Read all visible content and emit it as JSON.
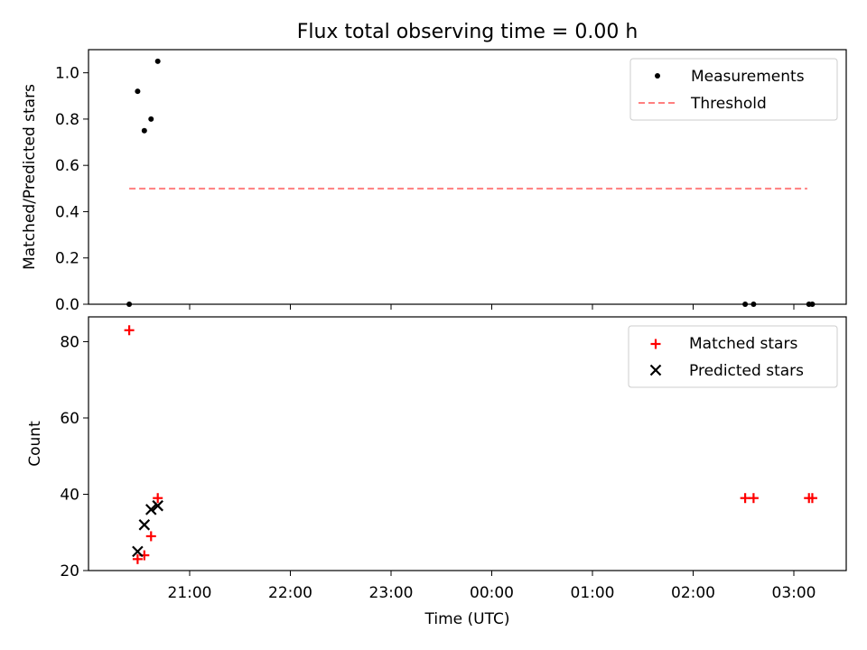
{
  "chart_data": [
    {
      "type": "scatter",
      "title": "Flux total observing time = 0.00 h",
      "ylabel": "Matched/Predicted stars",
      "xlabel": "",
      "ylim": [
        0,
        1.1
      ],
      "yticks": [
        "0.0",
        "0.2",
        "0.4",
        "0.6",
        "0.8",
        "1.0"
      ],
      "ytick_values": [
        0,
        0.2,
        0.4,
        0.6,
        0.8,
        1.0
      ],
      "series": [
        {
          "name": "Measurements",
          "kind": "scatter",
          "color": "#000000",
          "marker": "dot",
          "x": [
            "20:24",
            "20:29",
            "20:33",
            "20:37",
            "20:41",
            "02:31",
            "02:36",
            "03:09",
            "03:11"
          ],
          "y": [
            0.0,
            0.92,
            0.75,
            0.8,
            1.05,
            0.0,
            0.0,
            0.0,
            0.0
          ]
        },
        {
          "name": "Threshold",
          "kind": "line",
          "color": "#ff7f7f",
          "dash": "dashed",
          "x": [
            "20:24",
            "03:08"
          ],
          "y": [
            0.5,
            0.5
          ]
        }
      ],
      "legend": "top-right"
    },
    {
      "type": "scatter",
      "xlabel": "Time (UTC)",
      "ylabel": "Count",
      "ylim": [
        20,
        86.5
      ],
      "yticks": [
        "20",
        "40",
        "60",
        "80"
      ],
      "ytick_values": [
        20,
        40,
        60,
        80
      ],
      "xticks": [
        "21:00",
        "22:00",
        "23:00",
        "00:00",
        "01:00",
        "02:00",
        "03:00"
      ],
      "series": [
        {
          "name": "Matched stars",
          "kind": "scatter",
          "color": "#ff0000",
          "marker": "plus",
          "x": [
            "20:24",
            "20:29",
            "20:33",
            "20:37",
            "20:41",
            "02:31",
            "02:36",
            "03:09",
            "03:11"
          ],
          "y": [
            83,
            23,
            24,
            29,
            39,
            39,
            39,
            39,
            39
          ]
        },
        {
          "name": "Predicted stars",
          "kind": "scatter",
          "color": "#000000",
          "marker": "x",
          "x": [
            "20:29",
            "20:33",
            "20:37",
            "20:41"
          ],
          "y": [
            25,
            32,
            36,
            37
          ]
        }
      ],
      "legend": "top-right"
    }
  ]
}
